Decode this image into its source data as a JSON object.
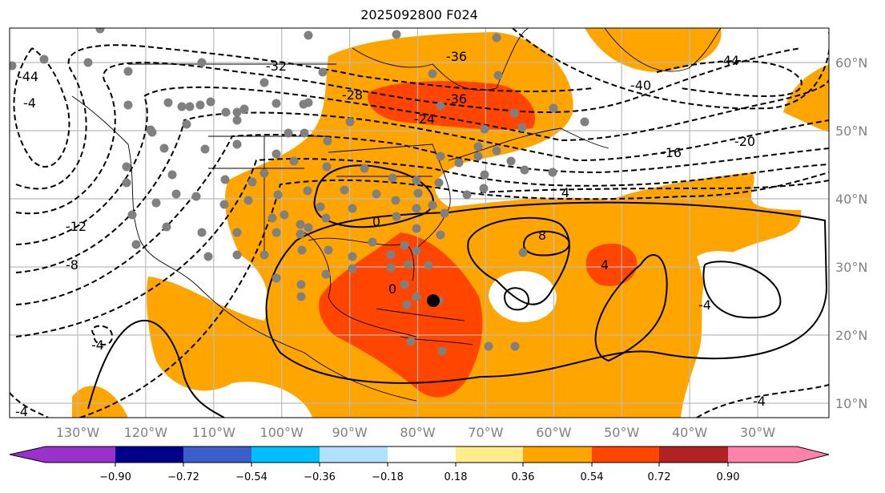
{
  "title": "2025092800 F024",
  "map": {
    "lon_labels": [
      "130°W",
      "120°W",
      "110°W",
      "100°W",
      "90°W",
      "80°W",
      "70°W",
      "60°W",
      "50°W",
      "40°W",
      "30°W"
    ],
    "lat_labels": [
      "60°N",
      "50°N",
      "40°N",
      "30°N",
      "20°N",
      "10°N"
    ],
    "contour_labels": [
      "-32",
      "-28",
      "-36",
      "-36",
      "-24",
      "-44",
      "-40",
      "-20",
      "-16",
      "-12",
      "-8",
      "-4",
      "4",
      "8",
      "0",
      "0",
      "-4",
      "4",
      "-4",
      "-4",
      "-44",
      "-4"
    ],
    "fill_colors": {
      "orange": "#ffa500",
      "red": "#ff4500"
    },
    "station_marker_color": "#808080"
  },
  "colorbar": {
    "colors": [
      "#9932cc",
      "#00008b",
      "#3a5fcd",
      "#00bfff",
      "#b0e2ff",
      "#ffffff",
      "#ffec8b",
      "#ffa500",
      "#ff4500",
      "#b22222",
      "#ff82ab"
    ],
    "ticks": [
      "−0.90",
      "−0.72",
      "−0.54",
      "−0.36",
      "−0.18",
      "0.18",
      "0.36",
      "0.54",
      "0.72",
      "0.90"
    ]
  }
}
